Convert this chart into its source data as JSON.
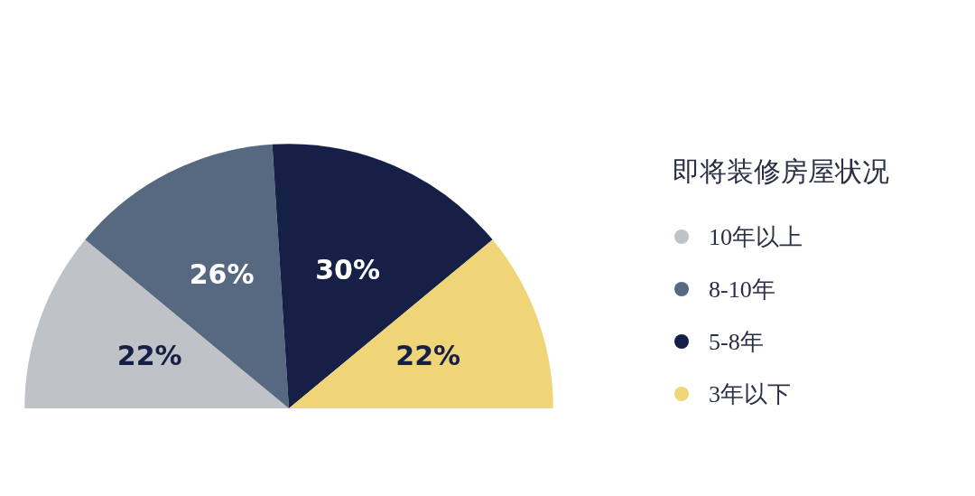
{
  "chart_data": {
    "type": "pie",
    "legend_title": "即将装修房屋状况",
    "categories": [
      "10年以上",
      "8-10年",
      "5-8年",
      "3年以下"
    ],
    "values": [
      22,
      26,
      30,
      22
    ],
    "colors": [
      "#bfc3c7",
      "#566981",
      "#161f45",
      "#efd577"
    ],
    "value_labels": [
      "22%",
      "26%",
      "30%",
      "22%"
    ],
    "legend": "right"
  }
}
